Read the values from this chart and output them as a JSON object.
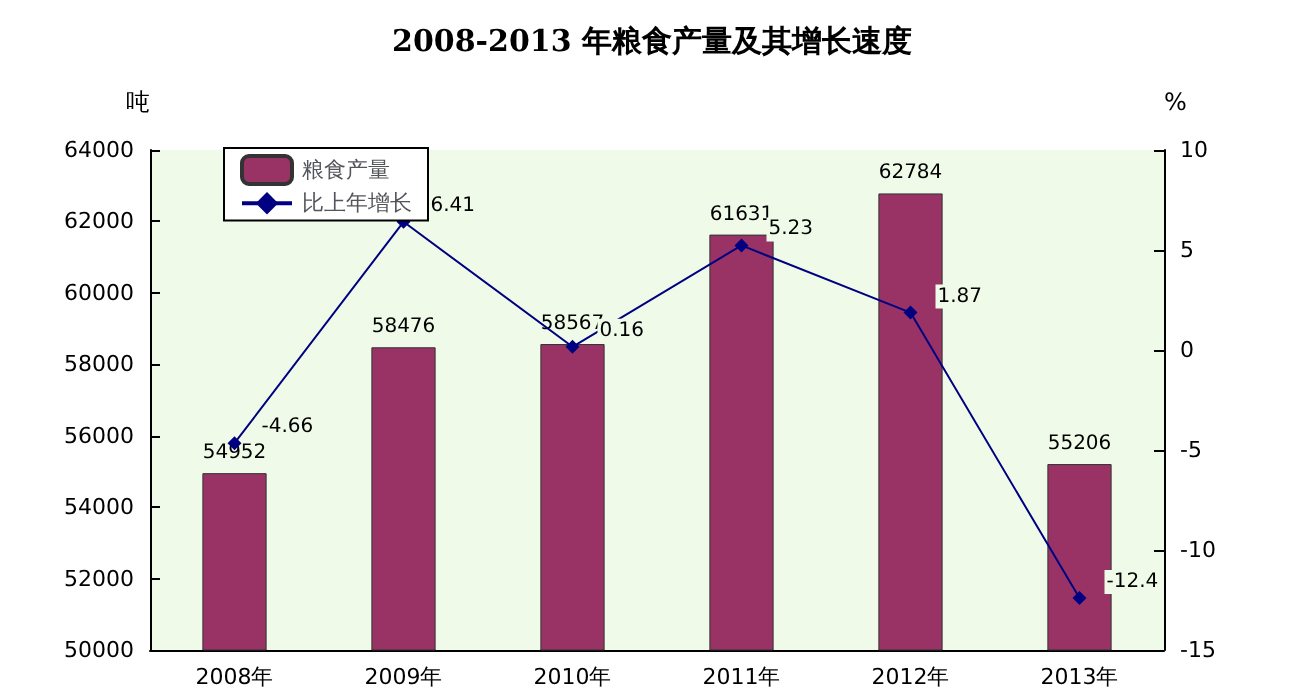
{
  "chart_data": {
    "type": "bar",
    "title": "2008-2013 年粮食产量及其增长速度",
    "ylabel": "吨",
    "y2label": "%",
    "categories": [
      "2008年",
      "2009年",
      "2010年",
      "2011年",
      "2012年",
      "2013年"
    ],
    "series": [
      {
        "name": "粮食产量",
        "color": "#993366",
        "values": [
          54952,
          58476,
          58567,
          61631,
          62784,
          55206
        ]
      },
      {
        "name": "比上年增长",
        "type": "line",
        "axis": "y2",
        "color": "#000080",
        "marker": "diamond",
        "values": [
          -4.66,
          6.41,
          0.16,
          5.23,
          1.87,
          -12.4
        ]
      }
    ],
    "ylim": [
      50000,
      64000
    ],
    "yticks": [
      50000,
      52000,
      54000,
      56000,
      58000,
      60000,
      62000,
      64000
    ],
    "y2lim": [
      -15,
      10
    ],
    "y2ticks": [
      -15,
      -10,
      -5,
      0,
      5,
      10
    ],
    "data_labels": true,
    "grid": false,
    "legend": "top left"
  }
}
